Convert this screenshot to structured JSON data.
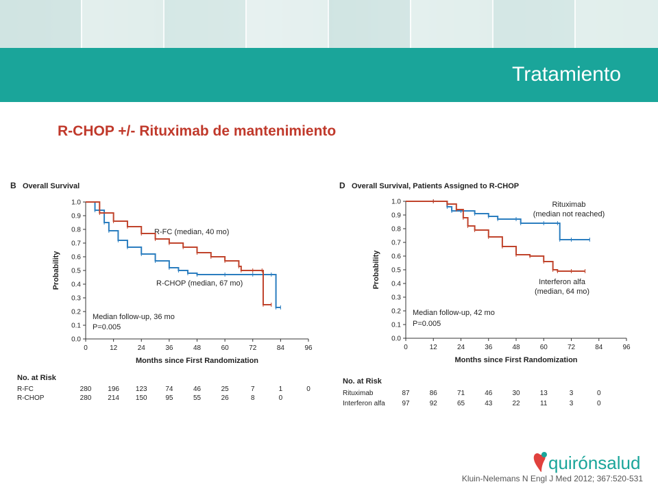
{
  "slide_title": "Tratamiento",
  "subtitle": "R-CHOP +/- Rituximab de mantenimiento",
  "citation": "Kluin-Nelemans N Engl J Med 2012; 367:520-531",
  "logo_text": "quirónsalud",
  "colors": {
    "teal": "#1aa59a",
    "red_text": "#c0392b",
    "series_blue": "#2a7dbf",
    "series_red": "#c0432b"
  },
  "chart_data": [
    {
      "type": "line",
      "panel_letter": "B",
      "title": "Overall Survival",
      "xlabel": "Months since First Randomization",
      "ylabel": "Probability",
      "xlim": [
        0,
        96
      ],
      "ylim": [
        0,
        1.0
      ],
      "xticks": [
        "0",
        "12",
        "24",
        "36",
        "48",
        "60",
        "72",
        "84",
        "96"
      ],
      "yticks": [
        "0.0",
        "0.1",
        "0.2",
        "0.3",
        "0.4",
        "0.5",
        "0.6",
        "0.7",
        "0.8",
        "0.9",
        "1.0"
      ],
      "annotation": [
        "Median follow-up, 36 mo",
        "P=0.005"
      ],
      "series": [
        {
          "label": "R-FC (median, 40 mo)",
          "color": "#2a7dbf",
          "x": [
            0,
            4,
            8,
            10,
            14,
            18,
            24,
            30,
            36,
            40,
            44,
            48,
            60,
            72,
            80,
            82,
            84
          ],
          "y": [
            1.0,
            0.94,
            0.85,
            0.79,
            0.72,
            0.67,
            0.62,
            0.57,
            0.52,
            0.5,
            0.48,
            0.47,
            0.47,
            0.47,
            0.47,
            0.23,
            0.23
          ]
        },
        {
          "label": "R-CHOP (median, 67 mo)",
          "color": "#c0432b",
          "x": [
            0,
            6,
            12,
            18,
            24,
            30,
            36,
            42,
            48,
            54,
            60,
            66,
            67,
            72,
            76,
            76.5,
            80
          ],
          "y": [
            1.0,
            0.92,
            0.86,
            0.82,
            0.77,
            0.73,
            0.7,
            0.67,
            0.63,
            0.6,
            0.57,
            0.53,
            0.5,
            0.5,
            0.5,
            0.25,
            0.25
          ]
        }
      ],
      "risk_table": {
        "header": "No. at Risk",
        "rows": [
          {
            "name": "R-FC",
            "values": [
              "280",
              "196",
              "123",
              "74",
              "46",
              "25",
              "7",
              "1",
              "0"
            ]
          },
          {
            "name": "R-CHOP",
            "values": [
              "280",
              "214",
              "150",
              "95",
              "55",
              "26",
              "8",
              "0"
            ]
          }
        ]
      }
    },
    {
      "type": "line",
      "panel_letter": "D",
      "title": "Overall Survival, Patients Assigned to R-CHOP",
      "xlabel": "Months since First Randomization",
      "ylabel": "Probability",
      "xlim": [
        0,
        96
      ],
      "ylim": [
        0,
        1.0
      ],
      "xticks": [
        "0",
        "12",
        "24",
        "36",
        "48",
        "60",
        "72",
        "84",
        "96"
      ],
      "yticks": [
        "0.0",
        "0.1",
        "0.2",
        "0.3",
        "0.4",
        "0.5",
        "0.6",
        "0.7",
        "0.8",
        "0.9",
        "1.0"
      ],
      "annotation": [
        "Median follow-up, 42 mo",
        "P=0.005"
      ],
      "series": [
        {
          "label": "Rituximab (median not reached)",
          "color": "#2a7dbf",
          "x": [
            0,
            12,
            18,
            20,
            24,
            30,
            36,
            40,
            48,
            50,
            60,
            66,
            67,
            72,
            80
          ],
          "y": [
            1.0,
            1.0,
            0.96,
            0.93,
            0.93,
            0.91,
            0.89,
            0.87,
            0.87,
            0.84,
            0.84,
            0.84,
            0.72,
            0.72,
            0.72
          ]
        },
        {
          "label": "Interferon alfa (median, 64 mo)",
          "color": "#c0432b",
          "x": [
            0,
            12,
            18,
            22,
            25,
            27,
            30,
            36,
            42,
            48,
            54,
            60,
            64,
            66,
            72,
            78
          ],
          "y": [
            1.0,
            1.0,
            0.98,
            0.94,
            0.88,
            0.82,
            0.79,
            0.74,
            0.67,
            0.61,
            0.6,
            0.56,
            0.5,
            0.49,
            0.49,
            0.49
          ]
        }
      ],
      "risk_table": {
        "header": "No. at Risk",
        "rows": [
          {
            "name": "Rituximab",
            "values": [
              "87",
              "86",
              "71",
              "46",
              "30",
              "13",
              "3",
              "0"
            ]
          },
          {
            "name": "Interferon alfa",
            "values": [
              "97",
              "92",
              "65",
              "43",
              "22",
              "11",
              "3",
              "0"
            ]
          }
        ]
      }
    }
  ]
}
